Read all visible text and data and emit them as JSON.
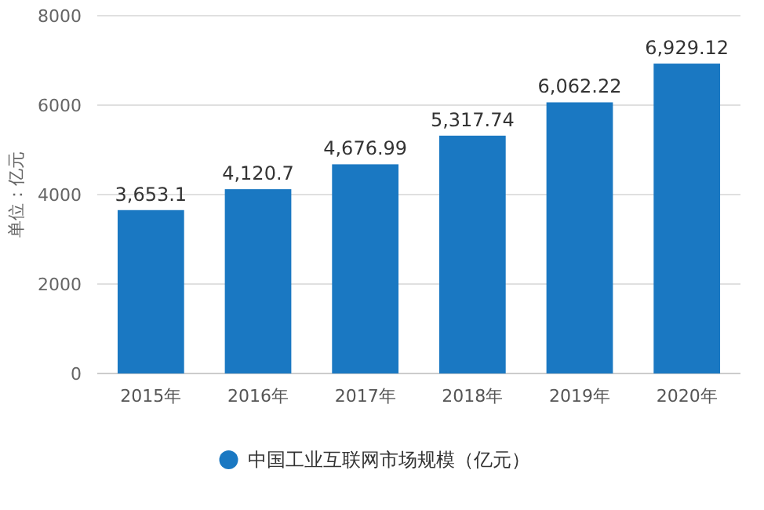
{
  "chart_data": {
    "type": "bar",
    "ylabel": "单位：亿元",
    "categories": [
      "2015年",
      "2016年",
      "2017年",
      "2018年",
      "2019年",
      "2020年"
    ],
    "series": [
      {
        "name": "中国工业互联网市场规模（亿元）",
        "color": "#1a78c2",
        "values": [
          3653.1,
          4120.7,
          4676.99,
          5317.74,
          6062.22,
          6929.12
        ],
        "value_labels": [
          "3,653.1",
          "4,120.7",
          "4,676.99",
          "5,317.74",
          "6,062.22",
          "6,929.12"
        ]
      }
    ],
    "ylim": [
      0,
      8000
    ],
    "yticks": [
      0,
      2000,
      4000,
      6000,
      8000
    ],
    "grid": "y",
    "legend": "bottom",
    "marker": "circle"
  }
}
